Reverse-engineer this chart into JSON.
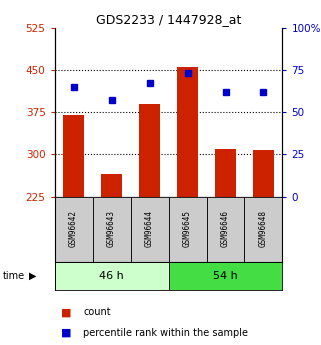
{
  "title": "GDS2233 / 1447928_at",
  "samples": [
    "GSM96642",
    "GSM96643",
    "GSM96644",
    "GSM96645",
    "GSM96646",
    "GSM96648"
  ],
  "bar_values": [
    370,
    265,
    390,
    455,
    310,
    307
  ],
  "percentile_values": [
    65,
    57,
    67,
    73,
    62,
    62
  ],
  "bar_color": "#cc2200",
  "dot_color": "#0000cc",
  "ylim_left": [
    225,
    525
  ],
  "ylim_right": [
    0,
    100
  ],
  "yticks_left": [
    225,
    300,
    375,
    450,
    525
  ],
  "yticks_right": [
    0,
    25,
    50,
    75,
    100
  ],
  "ytick_labels_left": [
    "225",
    "300",
    "375",
    "450",
    "525"
  ],
  "ytick_labels_right": [
    "0",
    "25",
    "50",
    "75",
    "100%"
  ],
  "group_bg_46": "#ccffcc",
  "group_bg_54": "#44dd44",
  "bar_base": 225,
  "legend_count_label": "count",
  "legend_pct_label": "percentile rank within the sample",
  "xlabel_color_left": "#cc2200",
  "xlabel_color_right": "#0000cc",
  "sample_box_color": "#cccccc",
  "grid_dotted_at": [
    300,
    375,
    450
  ]
}
